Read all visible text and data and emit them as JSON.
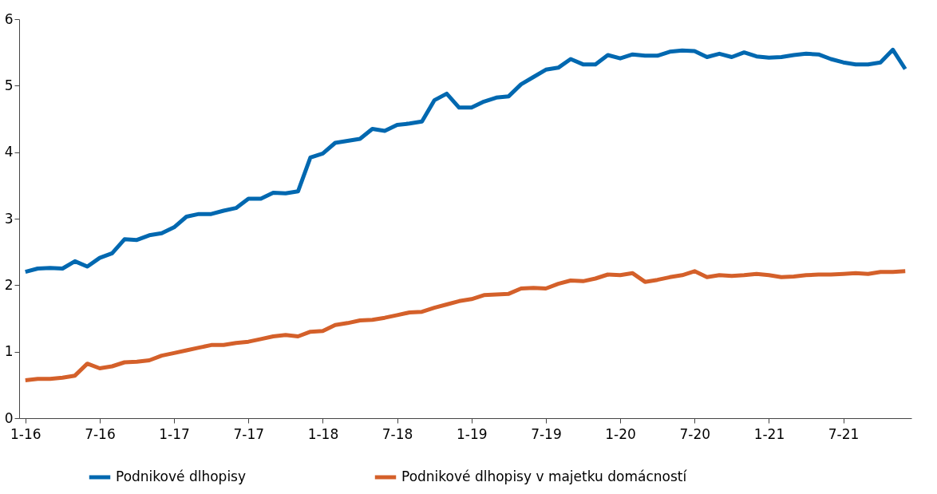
{
  "chart_data": {
    "type": "line",
    "categories": [
      "1-16",
      null,
      null,
      null,
      null,
      null,
      "7-16",
      null,
      null,
      null,
      null,
      null,
      "1-17",
      null,
      null,
      null,
      null,
      null,
      "7-17",
      null,
      null,
      null,
      null,
      null,
      "1-18",
      null,
      null,
      null,
      null,
      null,
      "7-18",
      null,
      null,
      null,
      null,
      null,
      "1-19",
      null,
      null,
      null,
      null,
      null,
      "7-19",
      null,
      null,
      null,
      null,
      null,
      "1-20",
      null,
      null,
      null,
      null,
      null,
      "7-20",
      null,
      null,
      null,
      null,
      null,
      "1-21",
      null,
      null,
      null,
      null,
      null,
      "7-21",
      null,
      null,
      null,
      null,
      null
    ],
    "series": [
      {
        "name": "Podnikové dlhopisy",
        "color": "#0068b0",
        "values": [
          2.2,
          2.25,
          2.26,
          2.25,
          2.36,
          2.28,
          2.41,
          2.48,
          2.69,
          2.68,
          2.75,
          2.78,
          2.87,
          3.03,
          3.07,
          3.07,
          3.12,
          3.16,
          3.3,
          3.3,
          3.39,
          3.38,
          3.41,
          3.92,
          3.98,
          4.14,
          4.17,
          4.2,
          4.35,
          4.32,
          4.41,
          4.43,
          4.46,
          4.78,
          4.88,
          4.67,
          4.67,
          4.76,
          4.82,
          4.84,
          5.02,
          5.13,
          5.24,
          5.27,
          5.4,
          5.32,
          5.32,
          5.46,
          5.41,
          5.47,
          5.45,
          5.45,
          5.51,
          5.53,
          5.52,
          5.43,
          5.48,
          5.43,
          5.5,
          5.44,
          5.42,
          5.43,
          5.46,
          5.48,
          5.47,
          5.4,
          5.35,
          5.32,
          5.32,
          5.35,
          5.54,
          5.25
        ]
      },
      {
        "name": "Podnikové dlhopisy v majetku domácností",
        "color": "#d4602a",
        "values": [
          0.57,
          0.59,
          0.59,
          0.61,
          0.64,
          0.82,
          0.75,
          0.78,
          0.84,
          0.85,
          0.87,
          0.94,
          0.98,
          1.02,
          1.06,
          1.1,
          1.1,
          1.13,
          1.15,
          1.19,
          1.23,
          1.25,
          1.23,
          1.3,
          1.31,
          1.4,
          1.43,
          1.47,
          1.48,
          1.51,
          1.55,
          1.59,
          1.6,
          1.66,
          1.71,
          1.76,
          1.79,
          1.85,
          1.86,
          1.87,
          1.95,
          1.96,
          1.95,
          2.02,
          2.07,
          2.06,
          2.1,
          2.16,
          2.15,
          2.18,
          2.05,
          2.08,
          2.12,
          2.15,
          2.21,
          2.12,
          2.15,
          2.14,
          2.15,
          2.17,
          2.15,
          2.12,
          2.13,
          2.15,
          2.16,
          2.16,
          2.17,
          2.18,
          2.17,
          2.2,
          2.2,
          2.21
        ]
      }
    ],
    "ylim": [
      0,
      6
    ],
    "yticks": [
      0,
      1,
      2,
      3,
      4,
      5,
      6
    ],
    "grid": false,
    "legend": "bottom",
    "marker": "none",
    "line_style": "solid"
  }
}
